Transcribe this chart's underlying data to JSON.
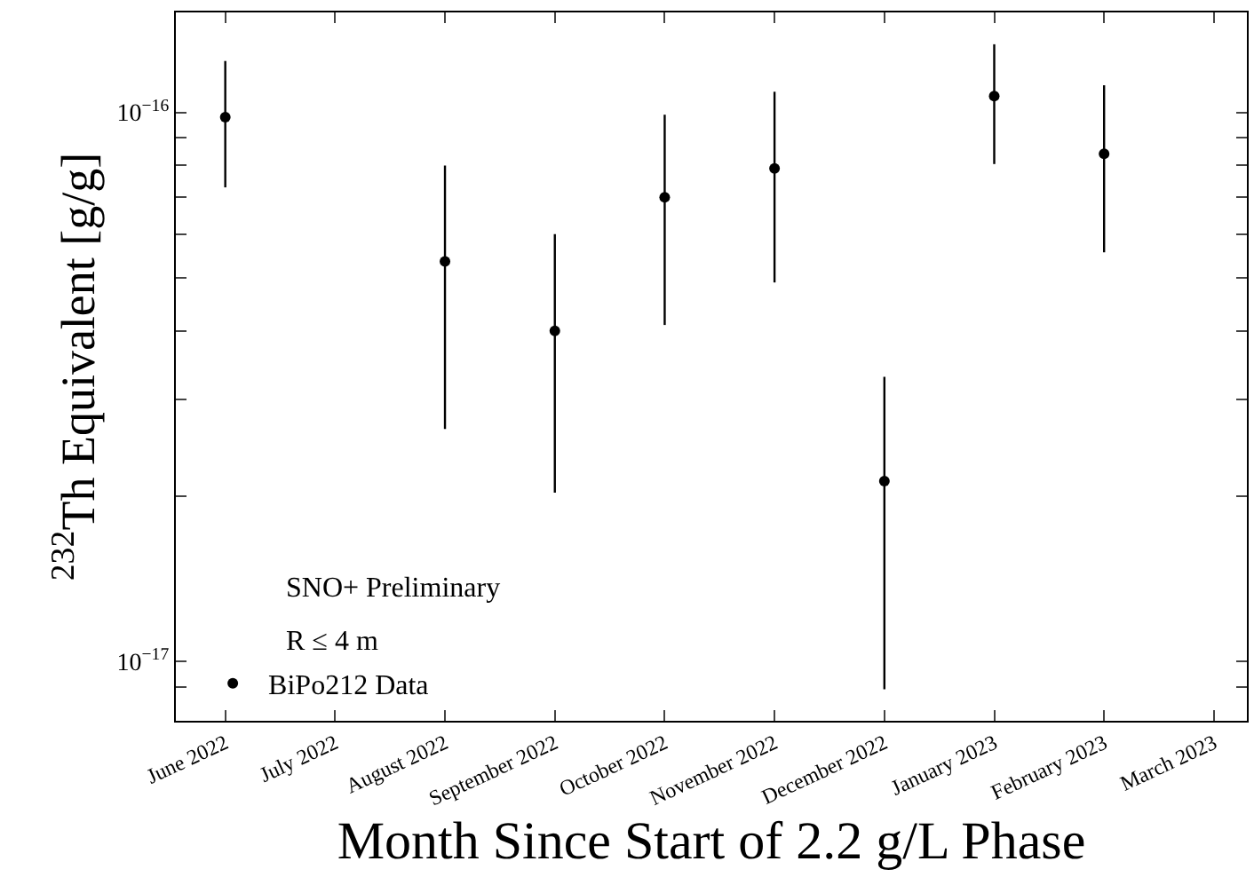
{
  "chart_data": {
    "type": "scatter",
    "xlabel": "Month Since Start of 2.2 g/L Phase",
    "ylabel": "$^{232}$Th Equivalent [g/g]",
    "categories": [
      "June 2022",
      "July 2022",
      "August 2022",
      "September 2022",
      "October 2022",
      "November 2022",
      "December 2022",
      "January 2023",
      "February 2023",
      "March 2023"
    ],
    "series": [
      {
        "name": "BiPo212 Data",
        "color": "#000000",
        "values": [
          9.8e-17,
          null,
          5.35e-17,
          4e-17,
          7e-17,
          7.9e-17,
          2.13e-17,
          1.07e-16,
          8.4e-17,
          null
        ],
        "errors": [
          [
            7.3e-17,
            1.24e-16
          ],
          null,
          [
            2.65e-17,
            8e-17
          ],
          [
            2.03e-17,
            6e-17
          ],
          [
            4.1e-17,
            9.9e-17
          ],
          [
            4.9e-17,
            1.09e-16
          ],
          [
            8.9e-18,
            3.3e-17
          ],
          [
            8.05e-17,
            1.33e-16
          ],
          [
            5.56e-17,
            1.12e-16
          ],
          null
        ]
      }
    ],
    "log": true,
    "ylim": [
      7.8e-18,
      1.52e-16
    ],
    "yticks": [
      {
        "value": 9e-18,
        "label": null
      },
      {
        "value": 1e-17,
        "label": "10$^{−17}$"
      },
      {
        "value": 2e-17,
        "label": null
      },
      {
        "value": 3e-17,
        "label": null
      },
      {
        "value": 4e-17,
        "label": null
      },
      {
        "value": 5e-17,
        "label": null
      },
      {
        "value": 6e-17,
        "label": null
      },
      {
        "value": 7e-17,
        "label": null
      },
      {
        "value": 8e-17,
        "label": null
      },
      {
        "value": 9e-17,
        "label": null
      },
      {
        "value": 1e-16,
        "label": "10$^{−16}$"
      }
    ],
    "annotations": [
      "SNO+ Preliminary",
      "R ≤ 4 m"
    ],
    "legend": "bottom left",
    "marker": "circle",
    "grid": false
  }
}
